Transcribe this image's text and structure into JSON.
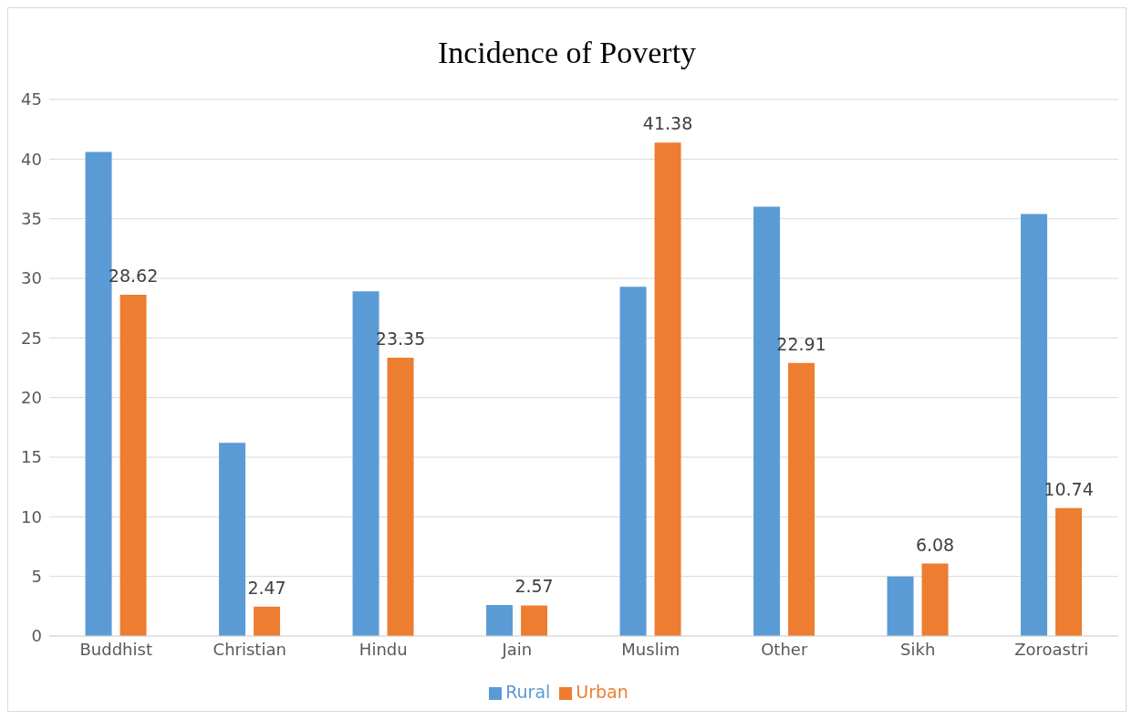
{
  "chart_data": {
    "type": "bar",
    "title": "Incidence of Poverty",
    "categories": [
      "Buddhist",
      "Christian",
      "Hindu",
      "Jain",
      "Muslim",
      "Other",
      "Sikh",
      "Zoroastri"
    ],
    "series": [
      {
        "name": "Rural",
        "color": "#5b9bd5",
        "values": [
          40.6,
          16.2,
          28.9,
          2.6,
          29.3,
          36.0,
          5.0,
          35.4
        ]
      },
      {
        "name": "Urban",
        "color": "#ed7d31",
        "values": [
          28.62,
          2.47,
          23.35,
          2.57,
          41.38,
          22.91,
          6.08,
          10.74
        ],
        "value_labels": [
          "28.62",
          "2.47",
          "23.35",
          "2.57",
          "41.38",
          "22.91",
          "6.08",
          "10.74"
        ]
      }
    ],
    "ylim": [
      0,
      45
    ],
    "yticks": [
      0,
      5,
      10,
      15,
      20,
      25,
      30,
      35,
      40,
      45
    ],
    "grid": "y",
    "legend": "bottom"
  }
}
